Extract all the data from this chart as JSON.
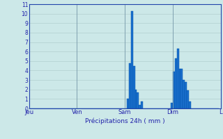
{
  "title": "Précipitations 24h ( mm )",
  "background_color": "#cce8e8",
  "plot_bg_color": "#cce8e8",
  "grid_color": "#aac8c8",
  "bar_color": "#1a6fcc",
  "bar_edge_color": "#0050aa",
  "ylim": [
    0,
    11
  ],
  "yticks": [
    0,
    1,
    2,
    3,
    4,
    5,
    6,
    7,
    8,
    9,
    10,
    11
  ],
  "day_labels": [
    "Jeu",
    "Ven",
    "Sam",
    "Dim",
    "L"
  ],
  "day_positions": [
    0,
    24,
    48,
    72,
    96
  ],
  "total_bars": 97,
  "values": [
    0,
    0,
    0,
    0,
    0,
    0,
    0,
    0,
    0,
    0,
    0,
    0,
    0,
    0,
    0,
    0,
    0,
    0,
    0,
    0,
    0,
    0,
    0,
    0,
    0,
    0,
    0,
    0,
    0,
    0,
    0,
    0,
    0,
    0,
    0,
    0,
    0,
    0,
    0,
    0,
    0,
    0,
    0,
    0,
    0,
    0,
    0,
    0,
    0,
    1.0,
    4.8,
    10.3,
    4.5,
    2.0,
    1.7,
    0.4,
    0.7,
    0,
    0,
    0,
    0,
    0,
    0,
    0,
    0,
    0,
    0,
    0,
    0,
    0,
    0,
    0.6,
    3.9,
    5.3,
    6.3,
    4.2,
    4.2,
    3.0,
    2.8,
    1.9,
    0.7,
    0,
    0,
    0,
    0,
    0,
    0,
    0,
    0,
    0,
    0,
    0,
    0,
    0,
    0
  ]
}
